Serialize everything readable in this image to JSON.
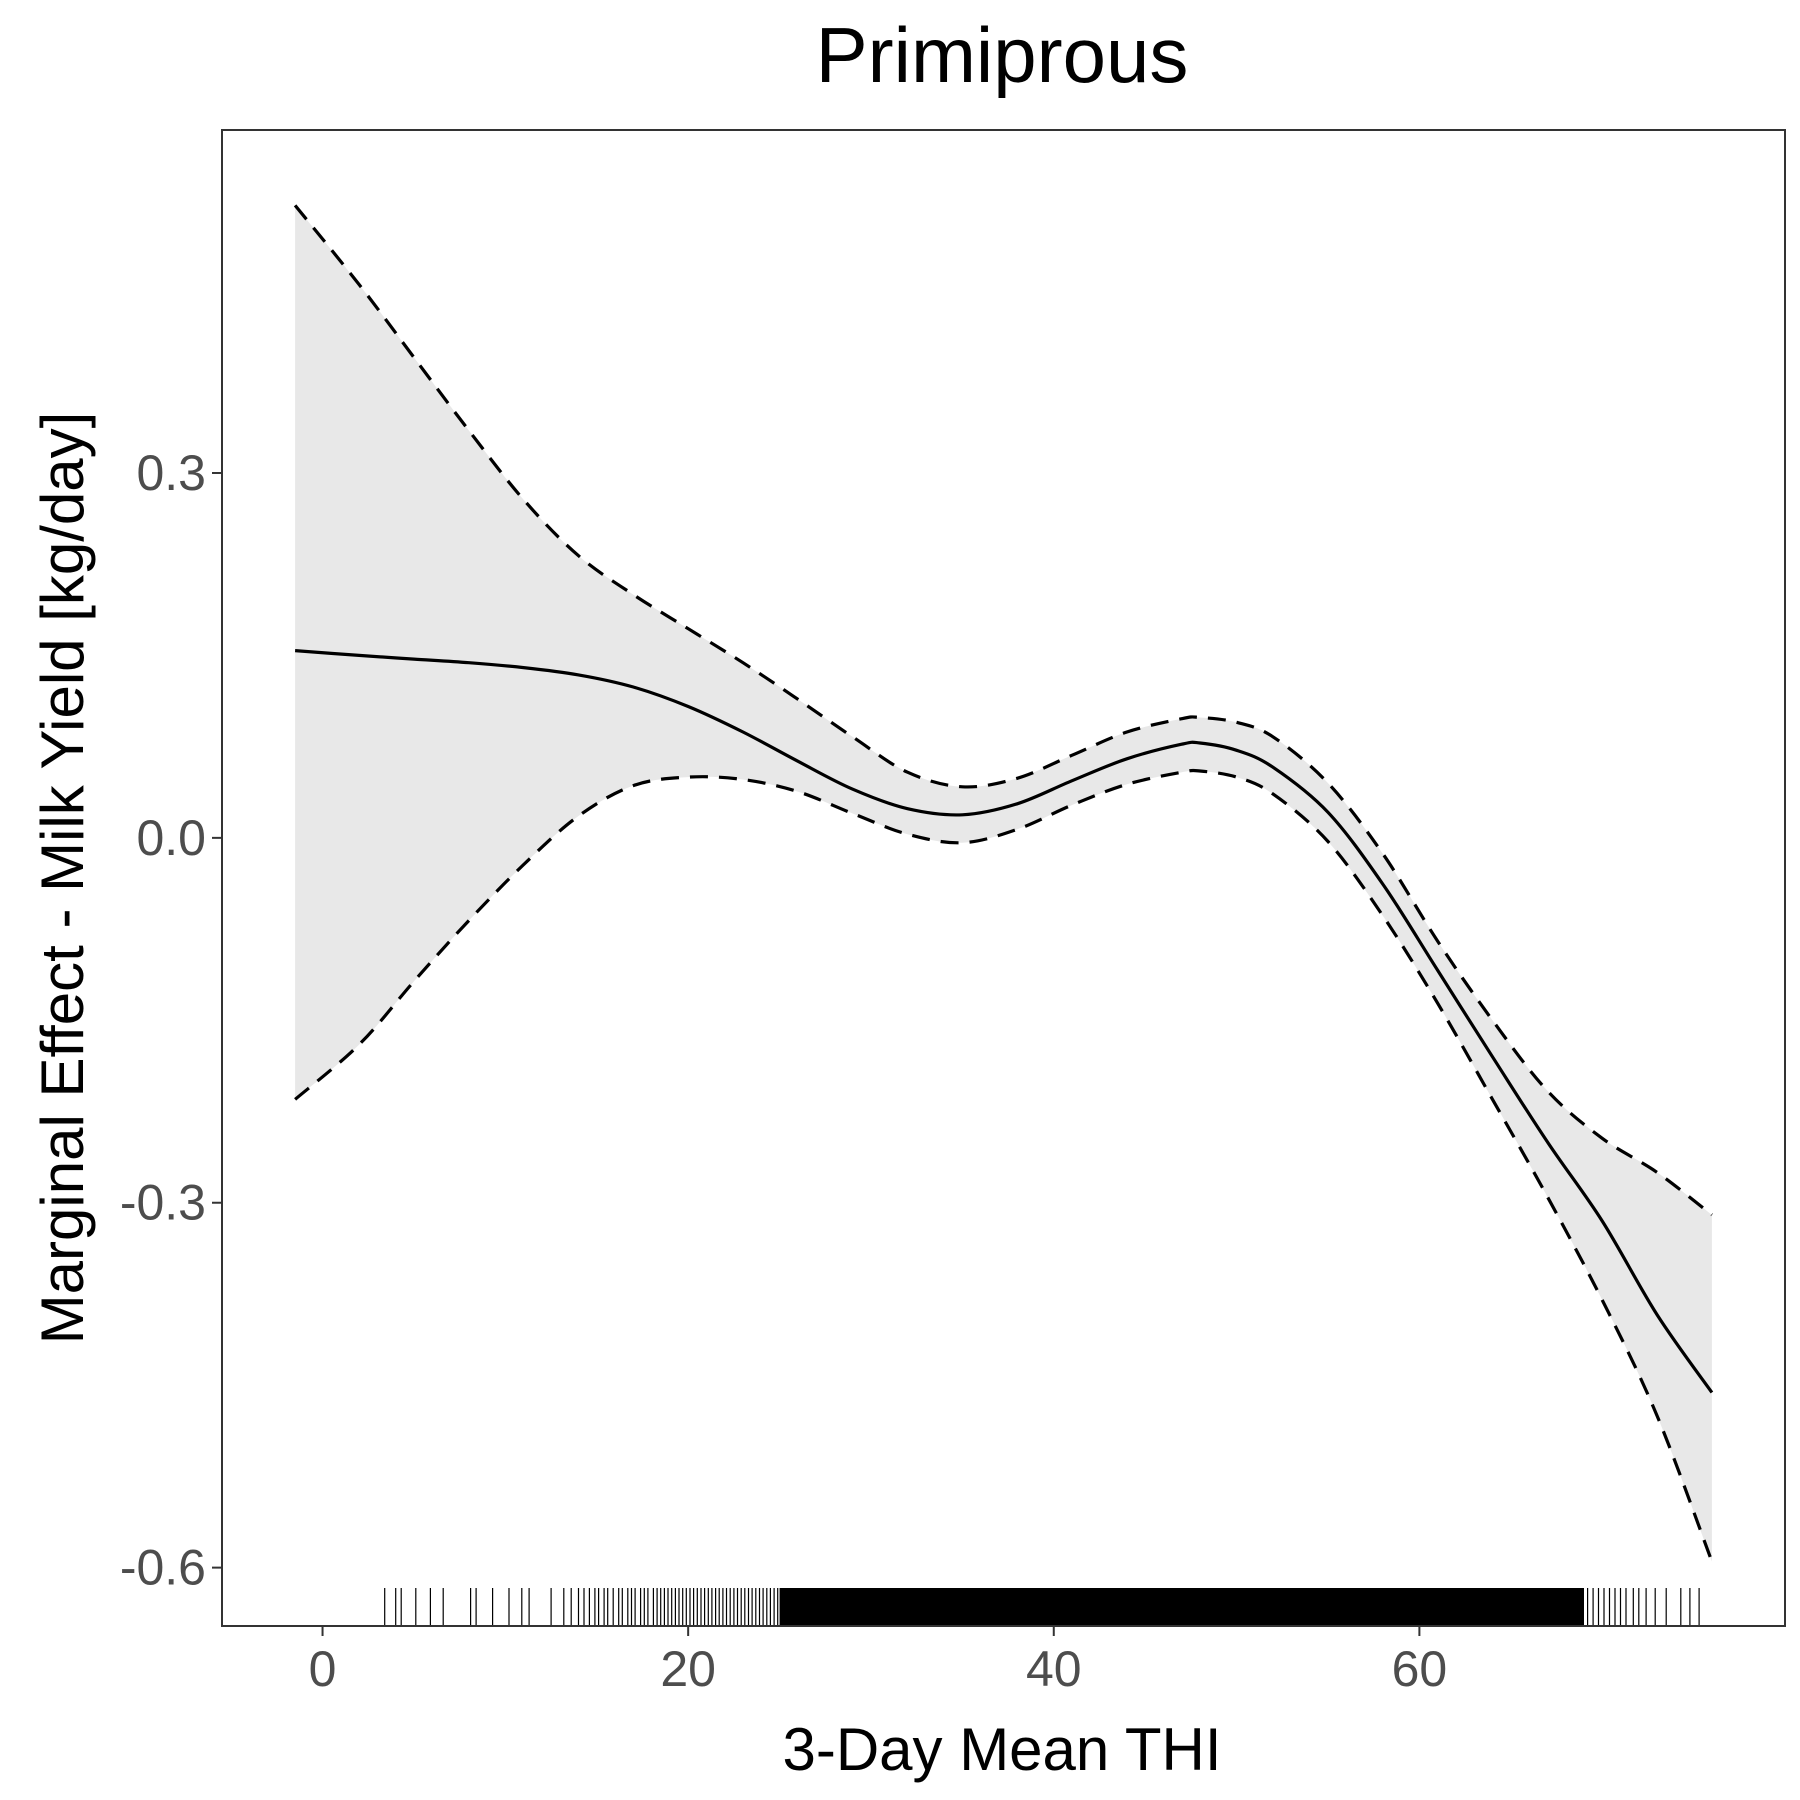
{
  "chart_data": {
    "type": "line",
    "title": "Primiprous",
    "xlabel": "3-Day Mean THI",
    "ylabel": "Marginal Effect - Milk Yield [kg/day]",
    "xlim": [
      -5.5,
      80
    ],
    "ylim": [
      -0.648,
      0.582
    ],
    "x_ticks": [
      0,
      20,
      40,
      60
    ],
    "x_tick_labels": [
      "0",
      "20",
      "40",
      "60"
    ],
    "y_ticks": [
      0.3,
      0.0,
      -0.3,
      -0.6
    ],
    "y_tick_labels": [
      "0.3",
      "0.0",
      "-0.3",
      "-0.6"
    ],
    "grid": false,
    "legend": "none",
    "series": [
      {
        "role": "fit",
        "line_style": "solid",
        "x": [
          -1.5,
          2,
          5,
          8,
          11,
          14,
          17,
          20,
          23,
          26,
          29,
          32,
          35,
          38,
          41,
          44,
          47,
          48,
          50,
          52,
          55,
          58,
          61,
          64,
          67,
          70,
          73,
          76
        ],
        "y": [
          0.154,
          0.15,
          0.147,
          0.144,
          0.14,
          0.134,
          0.124,
          0.108,
          0.087,
          0.063,
          0.04,
          0.024,
          0.019,
          0.028,
          0.047,
          0.065,
          0.077,
          0.078,
          0.072,
          0.058,
          0.021,
          -0.038,
          -0.109,
          -0.18,
          -0.25,
          -0.315,
          -0.392,
          -0.456
        ]
      },
      {
        "role": "upper_ci",
        "line_style": "dashed",
        "x": [
          -1.5,
          2,
          5,
          8,
          11,
          14,
          17,
          20,
          23,
          26,
          29,
          32,
          35,
          38,
          41,
          44,
          47,
          48,
          50,
          52,
          55,
          58,
          61,
          64,
          67,
          70,
          73,
          76
        ],
        "y": [
          0.52,
          0.455,
          0.395,
          0.335,
          0.278,
          0.232,
          0.2,
          0.172,
          0.144,
          0.114,
          0.083,
          0.054,
          0.042,
          0.049,
          0.068,
          0.087,
          0.098,
          0.099,
          0.095,
          0.083,
          0.045,
          -0.013,
          -0.085,
          -0.15,
          -0.208,
          -0.247,
          -0.275,
          -0.31
        ]
      },
      {
        "role": "lower_ci",
        "line_style": "dashed",
        "x": [
          -1.5,
          2,
          5,
          8,
          11,
          14,
          17,
          20,
          23,
          26,
          29,
          32,
          35,
          38,
          41,
          44,
          47,
          48,
          50,
          52,
          55,
          58,
          61,
          64,
          67,
          70,
          73,
          76
        ],
        "y": [
          -0.215,
          -0.17,
          -0.118,
          -0.068,
          -0.022,
          0.018,
          0.043,
          0.05,
          0.048,
          0.038,
          0.02,
          0.003,
          -0.004,
          0.007,
          0.027,
          0.044,
          0.054,
          0.055,
          0.05,
          0.036,
          -0.003,
          -0.064,
          -0.136,
          -0.215,
          -0.295,
          -0.38,
          -0.475,
          -0.595
        ]
      }
    ],
    "rug_x": [
      3.4,
      4.0,
      4.3,
      5.1,
      5.9,
      6.6,
      8.1,
      8.4,
      9.3,
      10.2,
      10.9,
      11.3,
      12.5,
      13.2,
      13.6,
      14.0,
      14.3,
      14.6,
      14.9,
      15.1,
      15.4,
      15.6,
      15.9,
      16.2,
      16.4,
      16.7,
      16.9,
      17.1,
      17.4,
      17.6,
      17.8,
      18.1,
      18.3,
      18.5,
      18.7,
      18.9,
      19.1,
      19.3,
      19.5,
      19.7,
      19.9,
      20.1,
      20.3,
      20.5,
      20.7,
      20.9,
      21.1,
      21.3,
      21.5,
      21.7,
      21.9,
      22.1,
      22.3,
      22.5,
      22.7,
      22.9,
      23.1,
      23.3,
      23.5,
      23.7,
      23.9,
      24.1,
      24.3,
      24.5,
      24.7,
      24.9
    ],
    "rug_dense_range": [
      25.0,
      69.0
    ],
    "rug_x_right": [
      69.2,
      69.5,
      69.8,
      70.1,
      70.4,
      70.7,
      71.0,
      71.3,
      71.7,
      72.0,
      72.4,
      72.9,
      73.5,
      74.3,
      74.8,
      75.3
    ]
  }
}
